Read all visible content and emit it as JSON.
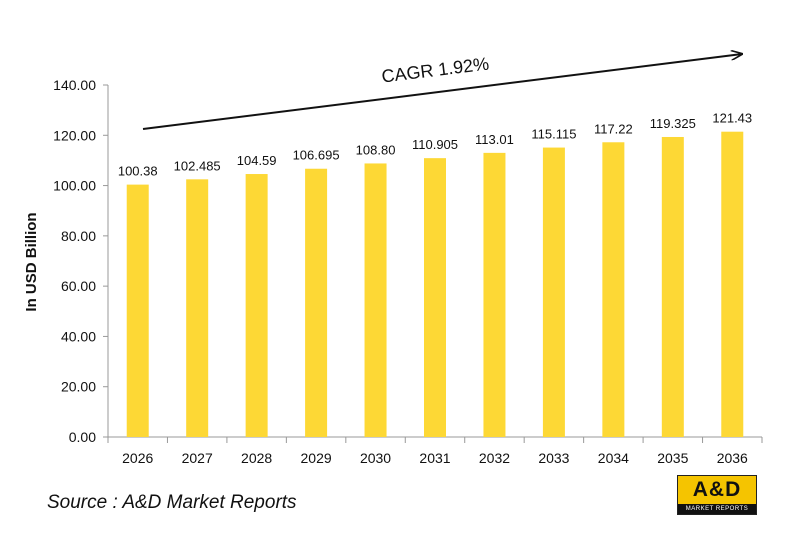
{
  "chart_data": {
    "type": "bar",
    "categories": [
      "2026",
      "2027",
      "2028",
      "2029",
      "2030",
      "2031",
      "2032",
      "2033",
      "2034",
      "2035",
      "2036"
    ],
    "values": [
      100.38,
      102.485,
      104.59,
      106.695,
      108.8,
      110.905,
      113.01,
      115.115,
      117.22,
      119.325,
      121.43
    ],
    "data_labels": [
      "100.38",
      "102.485",
      "104.59",
      "106.695",
      "108.80",
      "110.905",
      "113.01",
      "115.115",
      "117.22",
      "119.325",
      "121.43"
    ],
    "ylabel": "In USD Billion",
    "xlabel": "",
    "ylim": [
      0,
      140
    ],
    "yticks": [
      "0.00",
      "20.00",
      "40.00",
      "60.00",
      "80.00",
      "100.00",
      "120.00",
      "140.00"
    ],
    "annotation": "CAGR 1.92%",
    "grid": false,
    "bar_color": "#fdd835"
  },
  "source_text": "Source : A&D Market Reports",
  "logo": {
    "main_text": "A&D",
    "sub_text": "MARKET REPORTS"
  }
}
